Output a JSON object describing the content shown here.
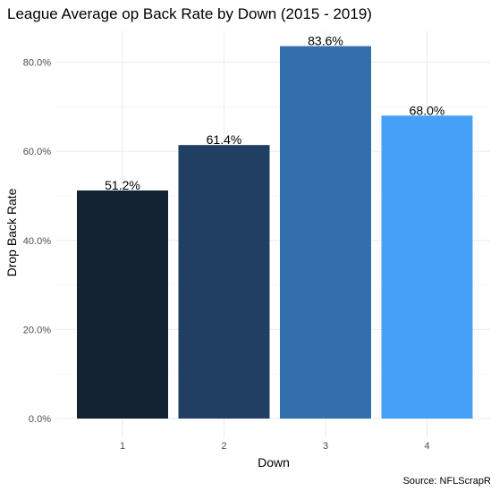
{
  "chart_data": {
    "type": "bar",
    "title": "League Average op Back Rate by Down (2015 - 2019)",
    "xlabel": "Down",
    "ylabel": "Drop Back Rate",
    "caption": "Source: NFLScrapR",
    "categories": [
      "1",
      "2",
      "3",
      "4"
    ],
    "values": [
      51.2,
      61.4,
      83.6,
      68.0
    ],
    "data_labels": [
      "51.2%",
      "61.4%",
      "83.6%",
      "68.0%"
    ],
    "colors": [
      "#132333",
      "#213f62",
      "#336fac",
      "#45a1f5"
    ],
    "yticks": [
      0,
      20,
      40,
      60,
      80
    ],
    "ytick_labels": [
      "0.0%",
      "20.0%",
      "40.0%",
      "60.0%",
      "80.0%"
    ],
    "ylim": [
      -2.5,
      88
    ],
    "grid": true,
    "legend": "none"
  }
}
